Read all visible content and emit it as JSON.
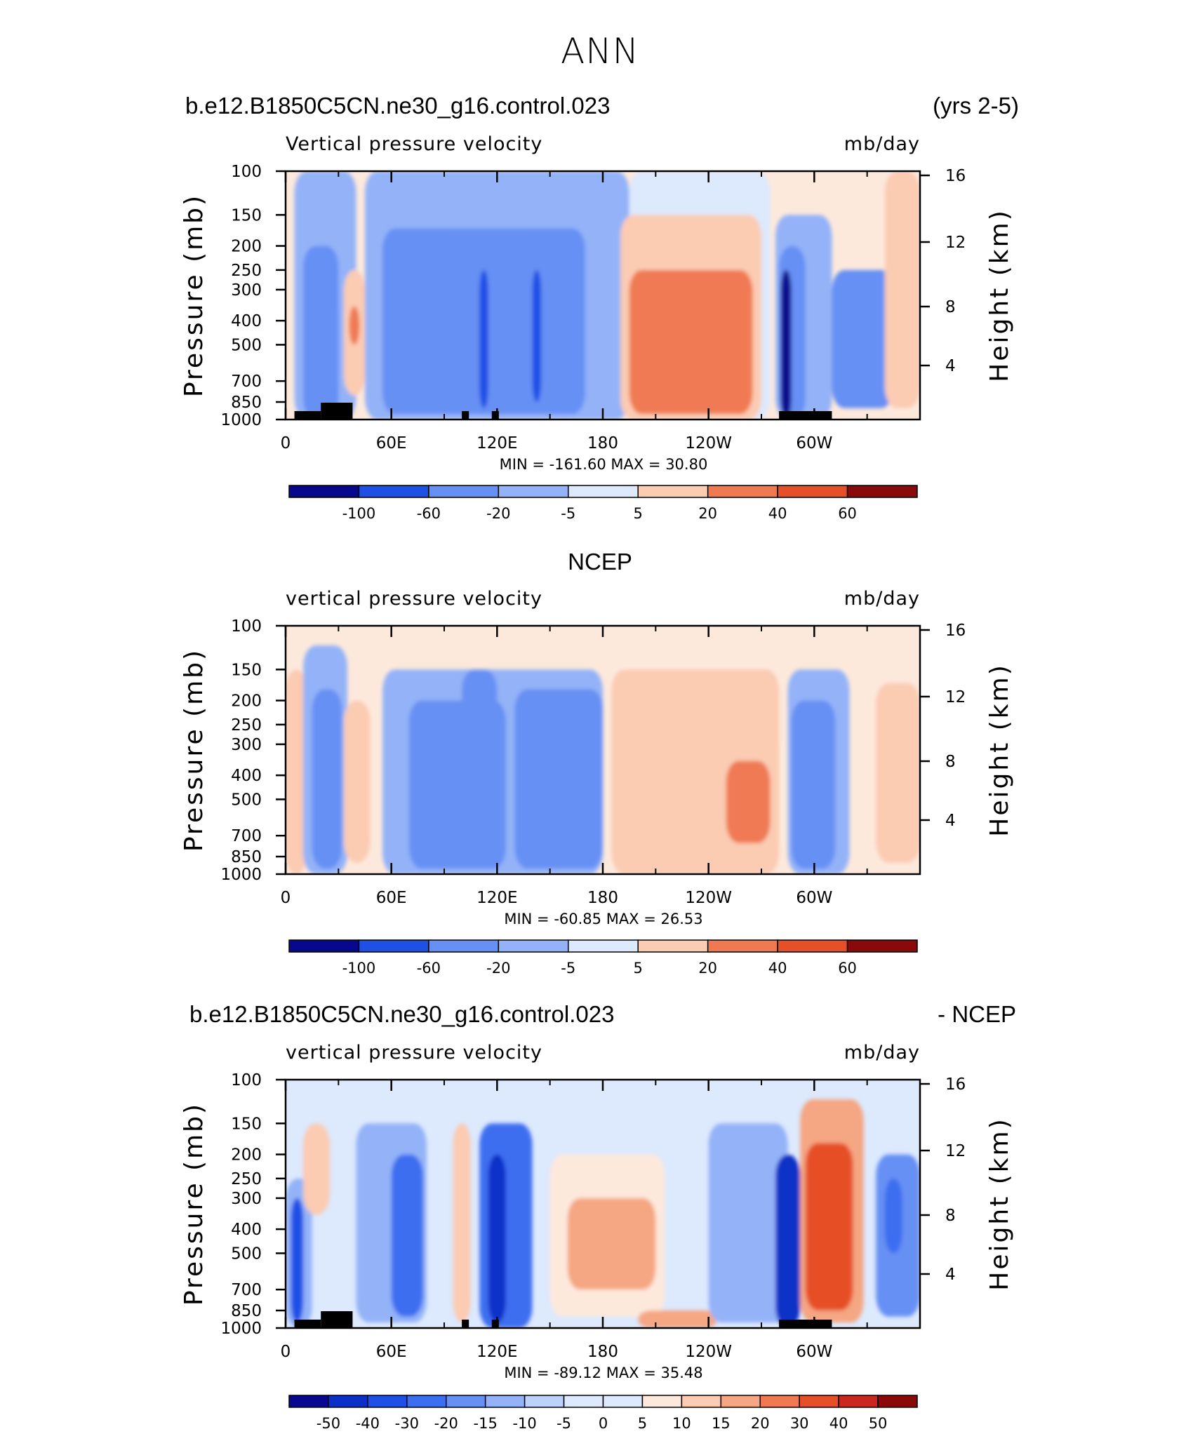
{
  "main_title": "ANN",
  "panels": [
    {
      "left_title": "b.e12.B1850C5CN.ne30_g16.control.023",
      "right_title": "(yrs 2-5)",
      "center_title": "",
      "var_label": "Vertical pressure velocity",
      "units": "mb/day",
      "y_left_title": "Pressure (mb)",
      "y_right_title": "Height (km)",
      "min_max": "MIN = -161.60   MAX =  30.80",
      "colorbar_labels": [
        "-100",
        "-60",
        "-20",
        "-5",
        "5",
        "20",
        "40",
        "60"
      ]
    },
    {
      "left_title": "",
      "right_title": "",
      "center_title": "NCEP",
      "var_label": "vertical pressure velocity",
      "units": "mb/day",
      "y_left_title": "Pressure (mb)",
      "y_right_title": "Height (km)",
      "min_max": "MIN = -60.85   MAX =  26.53",
      "colorbar_labels": [
        "-100",
        "-60",
        "-20",
        "-5",
        "5",
        "20",
        "40",
        "60"
      ]
    },
    {
      "left_title": "b.e12.B1850C5CN.ne30_g16.control.023",
      "right_title": "- NCEP",
      "center_title": "",
      "var_label": "vertical pressure velocity",
      "units": "mb/day",
      "y_left_title": "Pressure (mb)",
      "y_right_title": "Height (km)",
      "min_max": "MIN = -89.12   MAX =  35.48",
      "colorbar_labels": [
        "-50",
        "-40",
        "-30",
        "-20",
        "-15",
        "-10",
        "-5",
        "0",
        "5",
        "10",
        "15",
        "20",
        "30",
        "40",
        "50"
      ]
    }
  ],
  "colors": {
    "levels": [
      "#08088f",
      "#0a30c8",
      "#1e50e6",
      "#3c6ef0",
      "#6690f4",
      "#93b2f8",
      "#bcd2fb",
      "#dde9fd",
      "#fde9dc",
      "#fbcbb2",
      "#f5a682",
      "#ef7a52",
      "#e65028",
      "#c8281e",
      "#8a0a0a"
    ]
  },
  "chart_data": [
    {
      "type": "heatmap",
      "title": "b.e12.B1850C5CN.ne30_g16.control.023 (yrs 2-5)",
      "xlabel": "",
      "ylabel": "Pressure (mb)",
      "y2label": "Height (km)",
      "x_ticks": [
        "0",
        "60E",
        "120E",
        "180",
        "120W",
        "60W"
      ],
      "x_tick_values": [
        0,
        60,
        120,
        180,
        240,
        300
      ],
      "xlim": [
        0,
        360
      ],
      "y_ticks": [
        "100",
        "150",
        "200",
        "250",
        "300",
        "400",
        "500",
        "700",
        "850",
        "1000"
      ],
      "y_tick_values": [
        100,
        150,
        200,
        250,
        300,
        400,
        500,
        700,
        850,
        1000
      ],
      "y2_ticks": [
        "16",
        "12",
        "8",
        "4"
      ],
      "ylim": [
        1000,
        100
      ],
      "y_scale": "log",
      "units": "mb/day",
      "contour_levels": [
        -100,
        -60,
        -20,
        -5,
        5,
        20,
        40,
        60
      ],
      "min": -161.6,
      "max": 30.8,
      "regions": [
        {
          "lon": [
            5,
            40
          ],
          "p": [
            100,
            1000
          ],
          "v": -20
        },
        {
          "lon": [
            10,
            30
          ],
          "p": [
            200,
            1000
          ],
          "v": -40
        },
        {
          "lon": [
            15,
            30
          ],
          "p": [
            300,
            900
          ],
          "v": -60
        },
        {
          "lon": [
            33,
            45
          ],
          "p": [
            250,
            800
          ],
          "v": 10
        },
        {
          "lon": [
            36,
            42
          ],
          "p": [
            350,
            500
          ],
          "v": 30
        },
        {
          "lon": [
            45,
            195
          ],
          "p": [
            100,
            1000
          ],
          "v": -8
        },
        {
          "lon": [
            55,
            180
          ],
          "p": [
            120,
            1000
          ],
          "v": -20
        },
        {
          "lon": [
            55,
            170
          ],
          "p": [
            170,
            950
          ],
          "v": -40
        },
        {
          "lon": [
            60,
            165
          ],
          "p": [
            200,
            900
          ],
          "v": -60
        },
        {
          "lon": [
            110,
            115
          ],
          "p": [
            250,
            900
          ],
          "v": -100
        },
        {
          "lon": [
            140,
            145
          ],
          "p": [
            250,
            850
          ],
          "v": -100
        },
        {
          "lon": [
            195,
            275
          ],
          "p": [
            100,
            1000
          ],
          "v": 4
        },
        {
          "lon": [
            190,
            270
          ],
          "p": [
            150,
            1000
          ],
          "v": 12
        },
        {
          "lon": [
            195,
            265
          ],
          "p": [
            250,
            950
          ],
          "v": 25
        },
        {
          "lon": [
            215,
            225
          ],
          "p": [
            300,
            450
          ],
          "v": 35
        },
        {
          "lon": [
            278,
            310
          ],
          "p": [
            150,
            1000
          ],
          "v": -20
        },
        {
          "lon": [
            280,
            295
          ],
          "p": [
            200,
            1000
          ],
          "v": -60
        },
        {
          "lon": [
            281,
            287
          ],
          "p": [
            250,
            1000
          ],
          "v": -120
        },
        {
          "lon": [
            310,
            345
          ],
          "p": [
            250,
            900
          ],
          "v": -30
        },
        {
          "lon": [
            340,
            360
          ],
          "p": [
            100,
            900
          ],
          "v": 6
        }
      ]
    },
    {
      "type": "heatmap",
      "title": "NCEP",
      "xlabel": "",
      "ylabel": "Pressure (mb)",
      "y2label": "Height (km)",
      "x_ticks": [
        "0",
        "60E",
        "120E",
        "180",
        "120W",
        "60W"
      ],
      "x_tick_values": [
        0,
        60,
        120,
        180,
        240,
        300
      ],
      "xlim": [
        0,
        360
      ],
      "y_ticks": [
        "100",
        "150",
        "200",
        "250",
        "300",
        "400",
        "500",
        "700",
        "850",
        "1000"
      ],
      "y_tick_values": [
        100,
        150,
        200,
        250,
        300,
        400,
        500,
        700,
        850,
        1000
      ],
      "y2_ticks": [
        "16",
        "12",
        "8",
        "4"
      ],
      "ylim": [
        1000,
        100
      ],
      "y_scale": "log",
      "units": "mb/day",
      "contour_levels": [
        -100,
        -60,
        -20,
        -5,
        5,
        20,
        40,
        60
      ],
      "min": -60.85,
      "max": 26.53,
      "regions": [
        {
          "lon": [
            0,
            12
          ],
          "p": [
            150,
            1000
          ],
          "v": 8
        },
        {
          "lon": [
            10,
            35
          ],
          "p": [
            120,
            1000
          ],
          "v": -8
        },
        {
          "lon": [
            15,
            32
          ],
          "p": [
            180,
            950
          ],
          "v": -25
        },
        {
          "lon": [
            18,
            28
          ],
          "p": [
            250,
            850
          ],
          "v": -40
        },
        {
          "lon": [
            33,
            48
          ],
          "p": [
            200,
            900
          ],
          "v": 12
        },
        {
          "lon": [
            55,
            180
          ],
          "p": [
            150,
            1000
          ],
          "v": -10
        },
        {
          "lon": [
            70,
            125
          ],
          "p": [
            200,
            950
          ],
          "v": -25
        },
        {
          "lon": [
            80,
            115
          ],
          "p": [
            250,
            900
          ],
          "v": -40
        },
        {
          "lon": [
            100,
            120
          ],
          "p": [
            150,
            900
          ],
          "v": -45
        },
        {
          "lon": [
            130,
            180
          ],
          "p": [
            180,
            950
          ],
          "v": -25
        },
        {
          "lon": [
            140,
            170
          ],
          "p": [
            250,
            800
          ],
          "v": -45
        },
        {
          "lon": [
            185,
            280
          ],
          "p": [
            150,
            1000
          ],
          "v": 6
        },
        {
          "lon": [
            200,
            280
          ],
          "p": [
            250,
            900
          ],
          "v": 15
        },
        {
          "lon": [
            250,
            275
          ],
          "p": [
            350,
            750
          ],
          "v": 25
        },
        {
          "lon": [
            285,
            320
          ],
          "p": [
            150,
            1000
          ],
          "v": -20
        },
        {
          "lon": [
            287,
            312
          ],
          "p": [
            200,
            950
          ],
          "v": -45
        },
        {
          "lon": [
            335,
            360
          ],
          "p": [
            170,
            900
          ],
          "v": 12
        }
      ]
    },
    {
      "type": "heatmap",
      "title": "b.e12.B1850C5CN.ne30_g16.control.023 - NCEP",
      "xlabel": "",
      "ylabel": "Pressure (mb)",
      "y2label": "Height (km)",
      "x_ticks": [
        "0",
        "60E",
        "120E",
        "180",
        "120W",
        "60W"
      ],
      "x_tick_values": [
        0,
        60,
        120,
        180,
        240,
        300
      ],
      "xlim": [
        0,
        360
      ],
      "y_ticks": [
        "100",
        "150",
        "200",
        "250",
        "300",
        "400",
        "500",
        "700",
        "850",
        "1000"
      ],
      "y_tick_values": [
        100,
        150,
        200,
        250,
        300,
        400,
        500,
        700,
        850,
        1000
      ],
      "y2_ticks": [
        "16",
        "12",
        "8",
        "4"
      ],
      "ylim": [
        1000,
        100
      ],
      "y_scale": "log",
      "units": "mb/day",
      "contour_levels": [
        -50,
        -40,
        -30,
        -20,
        -15,
        -10,
        -5,
        0,
        5,
        10,
        15,
        20,
        30,
        40,
        50
      ],
      "min": -89.12,
      "max": 35.48,
      "regions": [
        {
          "lon": [
            0,
            15
          ],
          "p": [
            250,
            1000
          ],
          "v": -15
        },
        {
          "lon": [
            3,
            10
          ],
          "p": [
            300,
            950
          ],
          "v": -35
        },
        {
          "lon": [
            10,
            25
          ],
          "p": [
            150,
            350
          ],
          "v": 12
        },
        {
          "lon": [
            40,
            80
          ],
          "p": [
            150,
            950
          ],
          "v": -12
        },
        {
          "lon": [
            60,
            78
          ],
          "p": [
            200,
            900
          ],
          "v": -30
        },
        {
          "lon": [
            95,
            105
          ],
          "p": [
            150,
            950
          ],
          "v": 12
        },
        {
          "lon": [
            110,
            140
          ],
          "p": [
            150,
            1000
          ],
          "v": -25
        },
        {
          "lon": [
            115,
            125
          ],
          "p": [
            200,
            950
          ],
          "v": -45
        },
        {
          "lon": [
            150,
            215
          ],
          "p": [
            200,
            900
          ],
          "v": 6
        },
        {
          "lon": [
            160,
            210
          ],
          "p": [
            300,
            700
          ],
          "v": 15
        },
        {
          "lon": [
            200,
            245
          ],
          "p": [
            850,
            1000
          ],
          "v": 15
        },
        {
          "lon": [
            240,
            285
          ],
          "p": [
            150,
            950
          ],
          "v": -12
        },
        {
          "lon": [
            278,
            292
          ],
          "p": [
            200,
            1000
          ],
          "v": -45
        },
        {
          "lon": [
            292,
            328
          ],
          "p": [
            120,
            950
          ],
          "v": 18
        },
        {
          "lon": [
            295,
            322
          ],
          "p": [
            180,
            850
          ],
          "v": 32
        },
        {
          "lon": [
            335,
            360
          ],
          "p": [
            200,
            900
          ],
          "v": -20
        },
        {
          "lon": [
            340,
            350
          ],
          "p": [
            250,
            500
          ],
          "v": -30
        }
      ]
    }
  ]
}
